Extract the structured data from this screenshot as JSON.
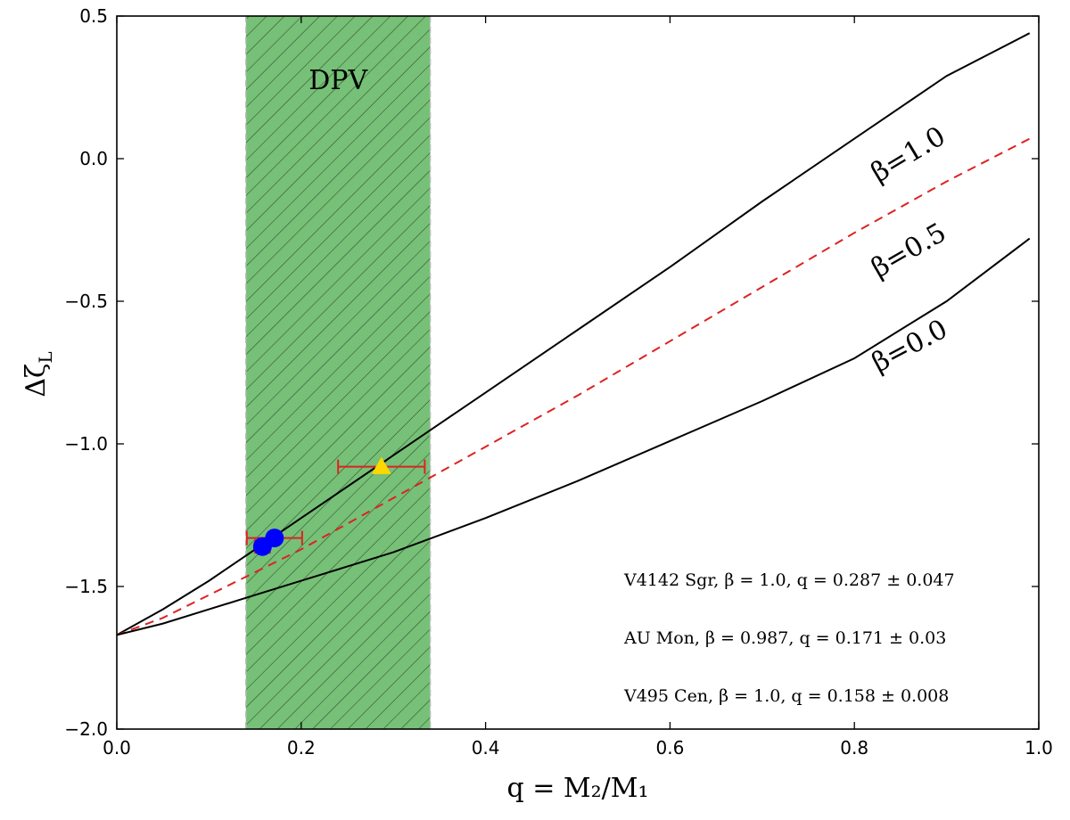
{
  "chart_data": {
    "type": "line",
    "xlabel": "q = M₂/M₁",
    "ylabel": "Δζ_L",
    "ylabel_main": "Δζ",
    "ylabel_sub": "L",
    "xlim": [
      0.0,
      1.0
    ],
    "ylim": [
      -2.0,
      0.5
    ],
    "x_ticks": [
      0.0,
      0.2,
      0.4,
      0.6,
      0.8,
      1.0
    ],
    "x_tick_labels": [
      "0.0",
      "0.2",
      "0.4",
      "0.6",
      "0.8",
      "1.0"
    ],
    "y_ticks": [
      0.5,
      0.0,
      -0.5,
      -1.0,
      -1.5,
      -2.0
    ],
    "y_tick_labels": [
      "0.5",
      "0.0",
      "−0.5",
      "−1.0",
      "−1.5",
      "−2.0"
    ],
    "shaded_region": {
      "label": "DPV",
      "x_range": [
        0.14,
        0.34
      ],
      "color": "#77c077",
      "hatch": "diagonal"
    },
    "series": [
      {
        "name": "β=1.0",
        "label": "β=1.0",
        "style": "solid",
        "color": "#000000",
        "x": [
          0.0,
          0.05,
          0.1,
          0.15,
          0.2,
          0.25,
          0.3,
          0.35,
          0.4,
          0.5,
          0.6,
          0.7,
          0.8,
          0.9,
          0.99
        ],
        "y": [
          -1.67,
          -1.58,
          -1.48,
          -1.37,
          -1.26,
          -1.15,
          -1.04,
          -0.93,
          -0.82,
          -0.6,
          -0.38,
          -0.15,
          0.07,
          0.29,
          0.44
        ]
      },
      {
        "name": "β=0.5",
        "label": "β=0.5",
        "style": "dashed",
        "color": "#dd2222",
        "x": [
          0.0,
          0.05,
          0.1,
          0.15,
          0.2,
          0.25,
          0.3,
          0.35,
          0.4,
          0.5,
          0.6,
          0.7,
          0.8,
          0.9,
          0.99
        ],
        "y": [
          -1.67,
          -1.61,
          -1.53,
          -1.45,
          -1.37,
          -1.28,
          -1.19,
          -1.1,
          -1.01,
          -0.83,
          -0.64,
          -0.45,
          -0.26,
          -0.08,
          0.07
        ]
      },
      {
        "name": "β=0.0",
        "label": "β=0.0",
        "style": "solid",
        "color": "#000000",
        "x": [
          0.0,
          0.05,
          0.1,
          0.15,
          0.2,
          0.25,
          0.3,
          0.35,
          0.4,
          0.5,
          0.6,
          0.7,
          0.8,
          0.9,
          0.99
        ],
        "y": [
          -1.67,
          -1.63,
          -1.58,
          -1.53,
          -1.48,
          -1.43,
          -1.38,
          -1.32,
          -1.26,
          -1.13,
          -0.99,
          -0.85,
          -0.7,
          -0.5,
          -0.28
        ]
      }
    ],
    "points": [
      {
        "name": "V4142 Sgr",
        "q": 0.287,
        "q_err": 0.047,
        "y": -1.08,
        "marker": "triangle",
        "color": "#ffd700"
      },
      {
        "name": "AU Mon",
        "q": 0.171,
        "q_err": 0.03,
        "y": -1.33,
        "marker": "circle",
        "color": "#0000ff"
      },
      {
        "name": "V495 Cen",
        "q": 0.158,
        "q_err": 0.008,
        "y": -1.36,
        "marker": "circle",
        "color": "#0000ff"
      }
    ],
    "annotations": [
      "V4142 Sgr, β = 1.0, q = 0.287 ± 0.047",
      "AU Mon, β = 0.987, q = 0.171 ± 0.03",
      "V495 Cen, β = 1.0, q = 0.158 ± 0.008"
    ],
    "errorbar_color": "#dd2222",
    "grid": false
  }
}
